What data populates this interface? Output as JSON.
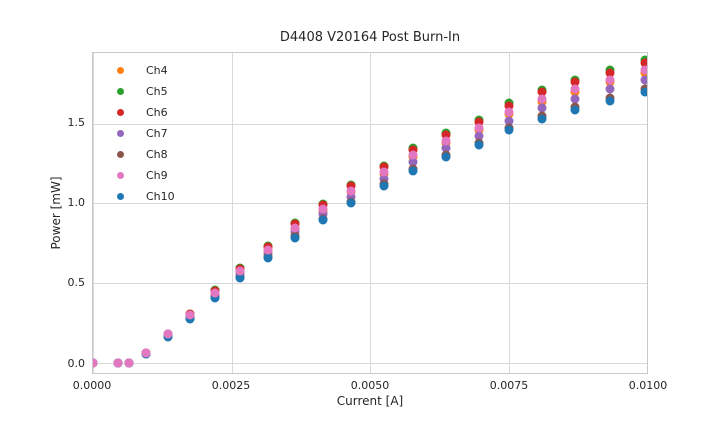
{
  "chart_data": {
    "type": "scatter",
    "title": "D4408 V20164 Post Burn-In",
    "xlabel": "Current [A]",
    "ylabel": "Power [mW]",
    "xlim": [
      0.0,
      0.01
    ],
    "ylim": [
      -0.065,
      1.945
    ],
    "grid": true,
    "legend_position": "upper left",
    "xticks": {
      "values": [
        0.0,
        0.0025,
        0.005,
        0.0075,
        0.01
      ],
      "labels": [
        "0.0000",
        "0.0025",
        "0.0050",
        "0.0075",
        "0.0100"
      ]
    },
    "yticks": {
      "values": [
        0.0,
        0.5,
        1.0,
        1.5
      ],
      "labels": [
        "0.0",
        "0.5",
        "1.0",
        "1.5"
      ]
    },
    "x": [
      0.0,
      0.00045,
      0.00065,
      0.00095,
      0.00135,
      0.00175,
      0.0022,
      0.00265,
      0.00315,
      0.00365,
      0.00415,
      0.00465,
      0.00525,
      0.00578,
      0.00638,
      0.00696,
      0.0075,
      0.0081,
      0.0087,
      0.00933,
      0.00996
    ],
    "series": [
      {
        "name": "Ch4",
        "color": "#ff7f0e",
        "values": [
          0.0,
          0.0,
          0.0,
          0.06,
          0.175,
          0.295,
          0.435,
          0.57,
          0.7,
          0.84,
          0.955,
          1.07,
          1.185,
          1.29,
          1.38,
          1.46,
          1.56,
          1.64,
          1.7,
          1.76,
          1.82
        ]
      },
      {
        "name": "Ch5",
        "color": "#2ca02c",
        "values": [
          0.0,
          0.0,
          0.0,
          0.063,
          0.183,
          0.308,
          0.455,
          0.596,
          0.732,
          0.878,
          0.998,
          1.118,
          1.238,
          1.348,
          1.442,
          1.526,
          1.63,
          1.714,
          1.777,
          1.839,
          1.902
        ]
      },
      {
        "name": "Ch6",
        "color": "#d62728",
        "values": [
          0.0,
          0.0,
          0.0,
          0.062,
          0.181,
          0.305,
          0.45,
          0.59,
          0.725,
          0.869,
          0.988,
          1.107,
          1.226,
          1.335,
          1.428,
          1.511,
          1.615,
          1.697,
          1.76,
          1.822,
          1.883
        ]
      },
      {
        "name": "Ch7",
        "color": "#9467bd",
        "values": [
          0.0,
          0.0,
          0.0,
          0.059,
          0.171,
          0.288,
          0.424,
          0.556,
          0.683,
          0.819,
          0.931,
          1.043,
          1.155,
          1.258,
          1.346,
          1.424,
          1.521,
          1.599,
          1.658,
          1.716,
          1.775
        ]
      },
      {
        "name": "Ch8",
        "color": "#8c564b",
        "values": [
          0.0,
          0.0,
          0.0,
          0.057,
          0.165,
          0.279,
          0.411,
          0.539,
          0.662,
          0.794,
          0.902,
          1.011,
          1.12,
          1.219,
          1.304,
          1.38,
          1.474,
          1.55,
          1.607,
          1.663,
          1.72
        ]
      },
      {
        "name": "Ch9",
        "color": "#e377c2",
        "values": [
          0.0,
          0.0,
          0.0,
          0.061,
          0.177,
          0.298,
          0.439,
          0.576,
          0.707,
          0.848,
          0.965,
          1.081,
          1.197,
          1.303,
          1.394,
          1.475,
          1.576,
          1.656,
          1.717,
          1.778,
          1.838
        ]
      },
      {
        "name": "Ch10",
        "color": "#1f77b4",
        "values": [
          0.0,
          0.0,
          0.0,
          0.056,
          0.164,
          0.276,
          0.407,
          0.533,
          0.655,
          0.785,
          0.893,
          1.0,
          1.108,
          1.206,
          1.29,
          1.365,
          1.459,
          1.533,
          1.59,
          1.646,
          1.702
        ]
      }
    ]
  },
  "style": {
    "background": "#ffffff",
    "grid_color": "#d9d9d9",
    "spine_color": "#c9c9c9",
    "text_color": "#262626"
  }
}
